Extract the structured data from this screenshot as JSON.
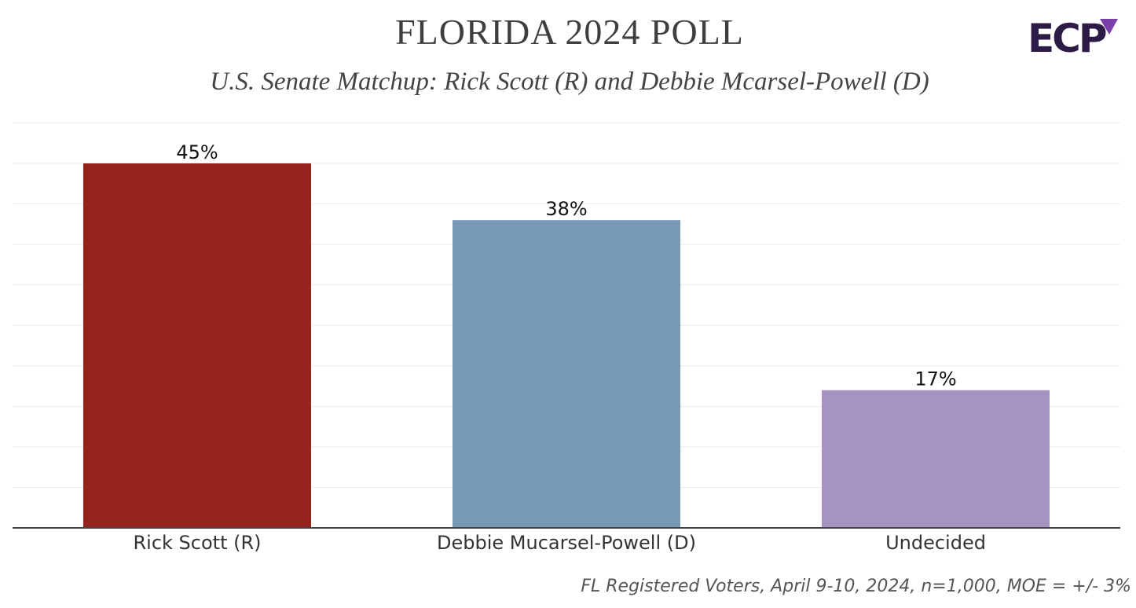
{
  "header": {
    "title": "FLORIDA 2024 POLL",
    "subtitle": "U.S. Senate Matchup: Rick Scott (R) and Debbie Mcarsel-Powell (D)",
    "logo_text": "ECP"
  },
  "footnote": "FL Registered Voters, April 9-10, 2024, n=1,000, MOE = +/- 3%",
  "colors": {
    "scott": "#96231b",
    "powell": "#7799b5",
    "undecided": "#a793c2",
    "logo_dark": "#2b1b46",
    "logo_accent": "#7a3fa8"
  },
  "chart_data": {
    "type": "bar",
    "title": "FLORIDA 2024 POLL",
    "subtitle": "U.S. Senate Matchup: Rick Scott (R) and Debbie Mcarsel-Powell (D)",
    "categories": [
      "Rick Scott (R)",
      "Debbie Mucarsel-Powell (D)",
      "Undecided"
    ],
    "values": [
      45,
      38,
      17
    ],
    "data_labels": [
      "45%",
      "38%",
      "17%"
    ],
    "bar_colors": [
      "#96231b",
      "#7799b5",
      "#a793c2"
    ],
    "xlabel": "",
    "ylabel": "",
    "ylim": [
      0,
      50
    ],
    "grid": true,
    "y_axis_visible": false,
    "legend": "none"
  }
}
